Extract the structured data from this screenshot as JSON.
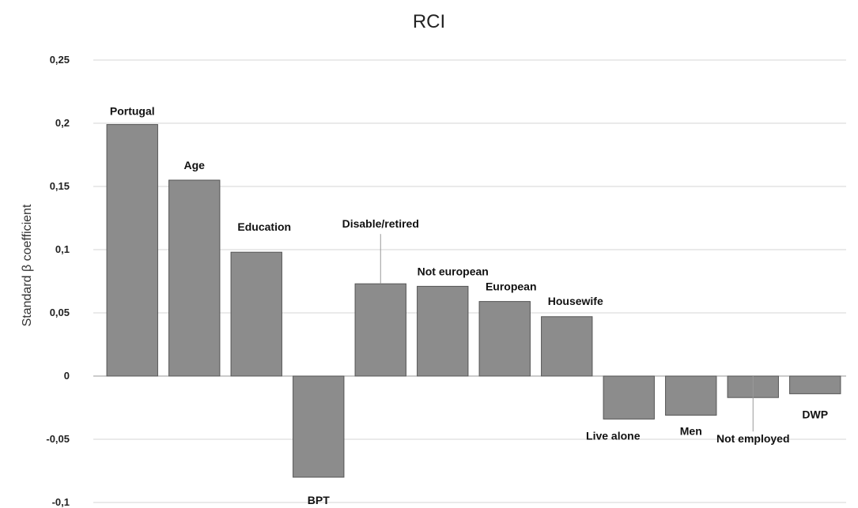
{
  "chart_data": {
    "type": "bar",
    "title": "RCI",
    "xlabel": "",
    "ylabel": "Standard β coefficient",
    "ylim": [
      -0.1,
      0.25
    ],
    "yticks": [
      -0.1,
      -0.05,
      0,
      0.05,
      0.1,
      0.15,
      0.2,
      0.25
    ],
    "ytick_labels": [
      "-0,1",
      "-0,05",
      "0",
      "0,05",
      "0,1",
      "0,15",
      "0,2",
      "0,25"
    ],
    "grid": true,
    "bar_color": "#8c8c8c",
    "categories": [
      "Portugal",
      "Age",
      "Education",
      "BPT",
      "Disable/retired",
      "Not european",
      "European",
      "Housewife",
      "Live alone",
      "Men",
      "Not employed",
      "DWP"
    ],
    "values": [
      0.199,
      0.155,
      0.098,
      -0.08,
      0.073,
      0.071,
      0.059,
      0.047,
      -0.034,
      -0.031,
      -0.017,
      -0.014
    ]
  }
}
